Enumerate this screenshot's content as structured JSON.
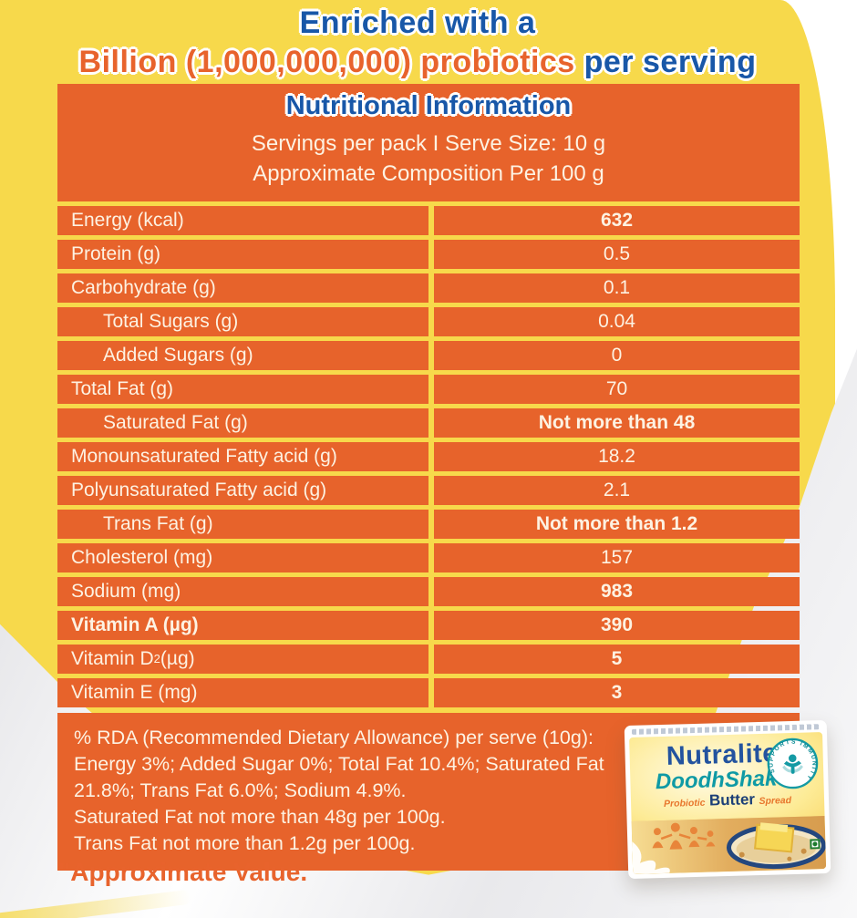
{
  "palette": {
    "yellow": "#F7D94B",
    "orange": "#E7632B",
    "blue": "#1857A8",
    "cream": "#FDF2E2",
    "accent_orange_text": "#E8632C"
  },
  "header": {
    "line1": "Enriched with a",
    "line2_highlight": "Billion (1,000,000,000) probiotics",
    "line2_rest": " per serving"
  },
  "table": {
    "title": "Nutritional Information",
    "serving_line": "Servings per pack I  Serve Size: 10 g",
    "composition_line": "Approximate Composition Per 100 g",
    "rows": [
      {
        "label": "Energy (kcal)",
        "value": "632",
        "indent": false,
        "label_bold": false,
        "value_bold": true
      },
      {
        "label": "Protein (g)",
        "value": "0.5",
        "indent": false,
        "label_bold": false,
        "value_bold": false
      },
      {
        "label": "Carbohydrate (g)",
        "value": "0.1",
        "indent": false,
        "label_bold": false,
        "value_bold": false
      },
      {
        "label": "Total Sugars (g)",
        "value": "0.04",
        "indent": true,
        "label_bold": false,
        "value_bold": false
      },
      {
        "label": "Added Sugars (g)",
        "value": "0",
        "indent": true,
        "label_bold": false,
        "value_bold": false
      },
      {
        "label": "Total Fat (g)",
        "value": "70",
        "indent": false,
        "label_bold": false,
        "value_bold": false
      },
      {
        "label": "Saturated Fat (g)",
        "value": "Not more than 48",
        "indent": true,
        "label_bold": false,
        "value_bold": true
      },
      {
        "label": "Monounsaturated Fatty acid (g)",
        "value": "18.2",
        "indent": false,
        "label_bold": false,
        "value_bold": false
      },
      {
        "label": "Polyunsaturated Fatty acid (g)",
        "value": "2.1",
        "indent": false,
        "label_bold": false,
        "value_bold": false
      },
      {
        "label": "Trans Fat (g)",
        "value": "Not more than 1.2",
        "indent": true,
        "label_bold": false,
        "value_bold": true
      },
      {
        "label": "Cholesterol (mg)",
        "value": "157",
        "indent": false,
        "label_bold": false,
        "value_bold": false
      },
      {
        "label": "Sodium (mg)",
        "value": "983",
        "indent": false,
        "label_bold": false,
        "value_bold": true
      },
      {
        "label": "Vitamin A (µg)",
        "value": "390",
        "indent": false,
        "label_bold": true,
        "value_bold": true
      },
      {
        "label": "Vitamin D",
        "label_sub": "2",
        "label_rest": "(µg)",
        "value": "5",
        "indent": false,
        "label_bold": false,
        "value_bold": true
      },
      {
        "label": "Vitamin E (mg)",
        "value": "3",
        "indent": false,
        "label_bold": false,
        "value_bold": true
      }
    ],
    "note_lines": [
      "% RDA (Recommended Dietary Allowance) per serve (10g):",
      "Energy 3%; Added Sugar 0%; Total Fat 10.4%; Saturated Fat",
      "21.8%; Trans Fat 6.0%; Sodium 4.9%.",
      "Saturated Fat not more than 48g per 100g.",
      "Trans Fat not more than 1.2g per 100g."
    ]
  },
  "approximate_value": "\"Approximate Value.",
  "pack": {
    "brand": "Nutralite",
    "brand_tm": "™",
    "product": "DoodhShakti",
    "product_tm": "™",
    "tagline_probiotic": "Probiotic",
    "tagline_butter": "Butter",
    "tagline_spread": "Spread",
    "badge_text": "SUPPORTS IMMUNITY"
  }
}
